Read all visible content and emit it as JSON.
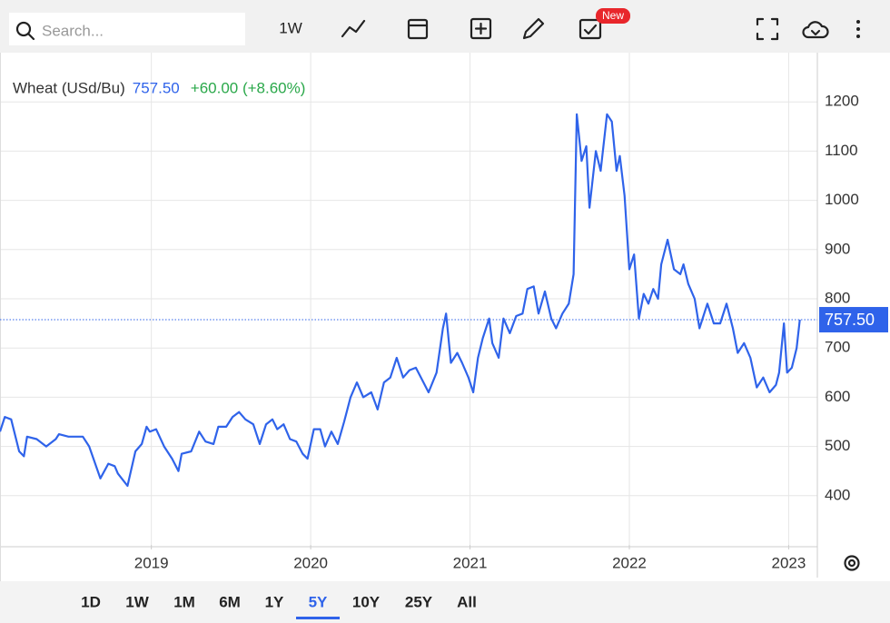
{
  "toolbar": {
    "search_placeholder": "Search...",
    "interval": "1W",
    "badge": "New"
  },
  "header": {
    "name": "Wheat (USd/Bu)",
    "price": "757.50",
    "change": "+60.00 (+8.60%)"
  },
  "chart_data": {
    "type": "line",
    "x": [
      2018.05,
      2018.08,
      2018.12,
      2018.17,
      2018.2,
      2018.22,
      2018.28,
      2018.34,
      2018.4,
      2018.42,
      2018.48,
      2018.57,
      2018.61,
      2018.68,
      2018.73,
      2018.77,
      2018.79,
      2018.85,
      2018.9,
      2018.94,
      2018.97,
      2018.99,
      2019.03,
      2019.08,
      2019.13,
      2019.17,
      2019.19,
      2019.25,
      2019.3,
      2019.34,
      2019.39,
      2019.42,
      2019.47,
      2019.51,
      2019.55,
      2019.59,
      2019.64,
      2019.68,
      2019.72,
      2019.76,
      2019.79,
      2019.83,
      2019.87,
      2019.91,
      2019.95,
      2019.98,
      2020.02,
      2020.06,
      2020.09,
      2020.13,
      2020.17,
      2020.21,
      2020.25,
      2020.29,
      2020.33,
      2020.38,
      2020.42,
      2020.46,
      2020.5,
      2020.54,
      2020.58,
      2020.62,
      2020.66,
      2020.7,
      2020.74,
      2020.79,
      2020.83,
      2020.85,
      2020.88,
      2020.92,
      2020.95,
      2020.99,
      2021.02,
      2021.05,
      2021.08,
      2021.12,
      2021.14,
      2021.18,
      2021.21,
      2021.25,
      2021.29,
      2021.33,
      2021.36,
      2021.4,
      2021.43,
      2021.47,
      2021.51,
      2021.54,
      2021.58,
      2021.62,
      2021.65,
      2021.67,
      2021.7,
      2021.73,
      2021.75,
      2021.79,
      2021.82,
      2021.86,
      2021.89,
      2021.92,
      2021.94,
      2021.97,
      2022.0,
      2022.03,
      2022.06,
      2022.09,
      2022.12,
      2022.15,
      2022.18,
      2022.2,
      2022.24,
      2022.28,
      2022.32,
      2022.34,
      2022.37,
      2022.41,
      2022.44,
      2022.49,
      2022.53,
      2022.57,
      2022.61,
      2022.65,
      2022.68,
      2022.72,
      2022.76,
      2022.8,
      2022.84,
      2022.88,
      2022.92,
      2022.94,
      2022.97,
      2022.99,
      2023.02,
      2023.05,
      2023.07
    ],
    "series": [
      {
        "name": "Wheat (USd/Bu)",
        "color": "#2f63ea",
        "values": [
          530,
          560,
          555,
          490,
          480,
          520,
          515,
          500,
          515,
          525,
          520,
          520,
          500,
          435,
          465,
          460,
          445,
          420,
          490,
          505,
          540,
          530,
          535,
          500,
          475,
          450,
          485,
          490,
          530,
          510,
          505,
          540,
          540,
          560,
          570,
          555,
          545,
          505,
          545,
          555,
          535,
          545,
          515,
          510,
          485,
          475,
          535,
          535,
          500,
          530,
          505,
          550,
          600,
          630,
          600,
          610,
          575,
          630,
          640,
          680,
          640,
          655,
          660,
          635,
          610,
          650,
          740,
          770,
          670,
          690,
          670,
          640,
          610,
          680,
          720,
          760,
          710,
          680,
          760,
          730,
          765,
          770,
          820,
          825,
          770,
          815,
          760,
          740,
          770,
          790,
          850,
          1175,
          1080,
          1110,
          985,
          1100,
          1060,
          1175,
          1160,
          1060,
          1090,
          1010,
          860,
          890,
          760,
          810,
          790,
          820,
          800,
          870,
          920,
          860,
          850,
          870,
          830,
          800,
          740,
          790,
          750,
          750,
          790,
          740,
          690,
          710,
          680,
          620,
          640,
          610,
          625,
          650,
          750,
          650,
          660,
          700,
          757.5
        ]
      }
    ],
    "xlim": [
      2018.05,
      2023.18
    ],
    "xticks": [
      2019,
      2020,
      2021,
      2022,
      2023
    ],
    "ylim": [
      300,
      1300
    ],
    "yticks": [
      400,
      500,
      600,
      700,
      800,
      900,
      1000,
      1100,
      1200
    ],
    "grid": true
  },
  "ranges": {
    "options": [
      "1D",
      "1W",
      "1M",
      "6M",
      "1Y",
      "5Y",
      "10Y",
      "25Y",
      "All"
    ],
    "selected": "5Y"
  }
}
